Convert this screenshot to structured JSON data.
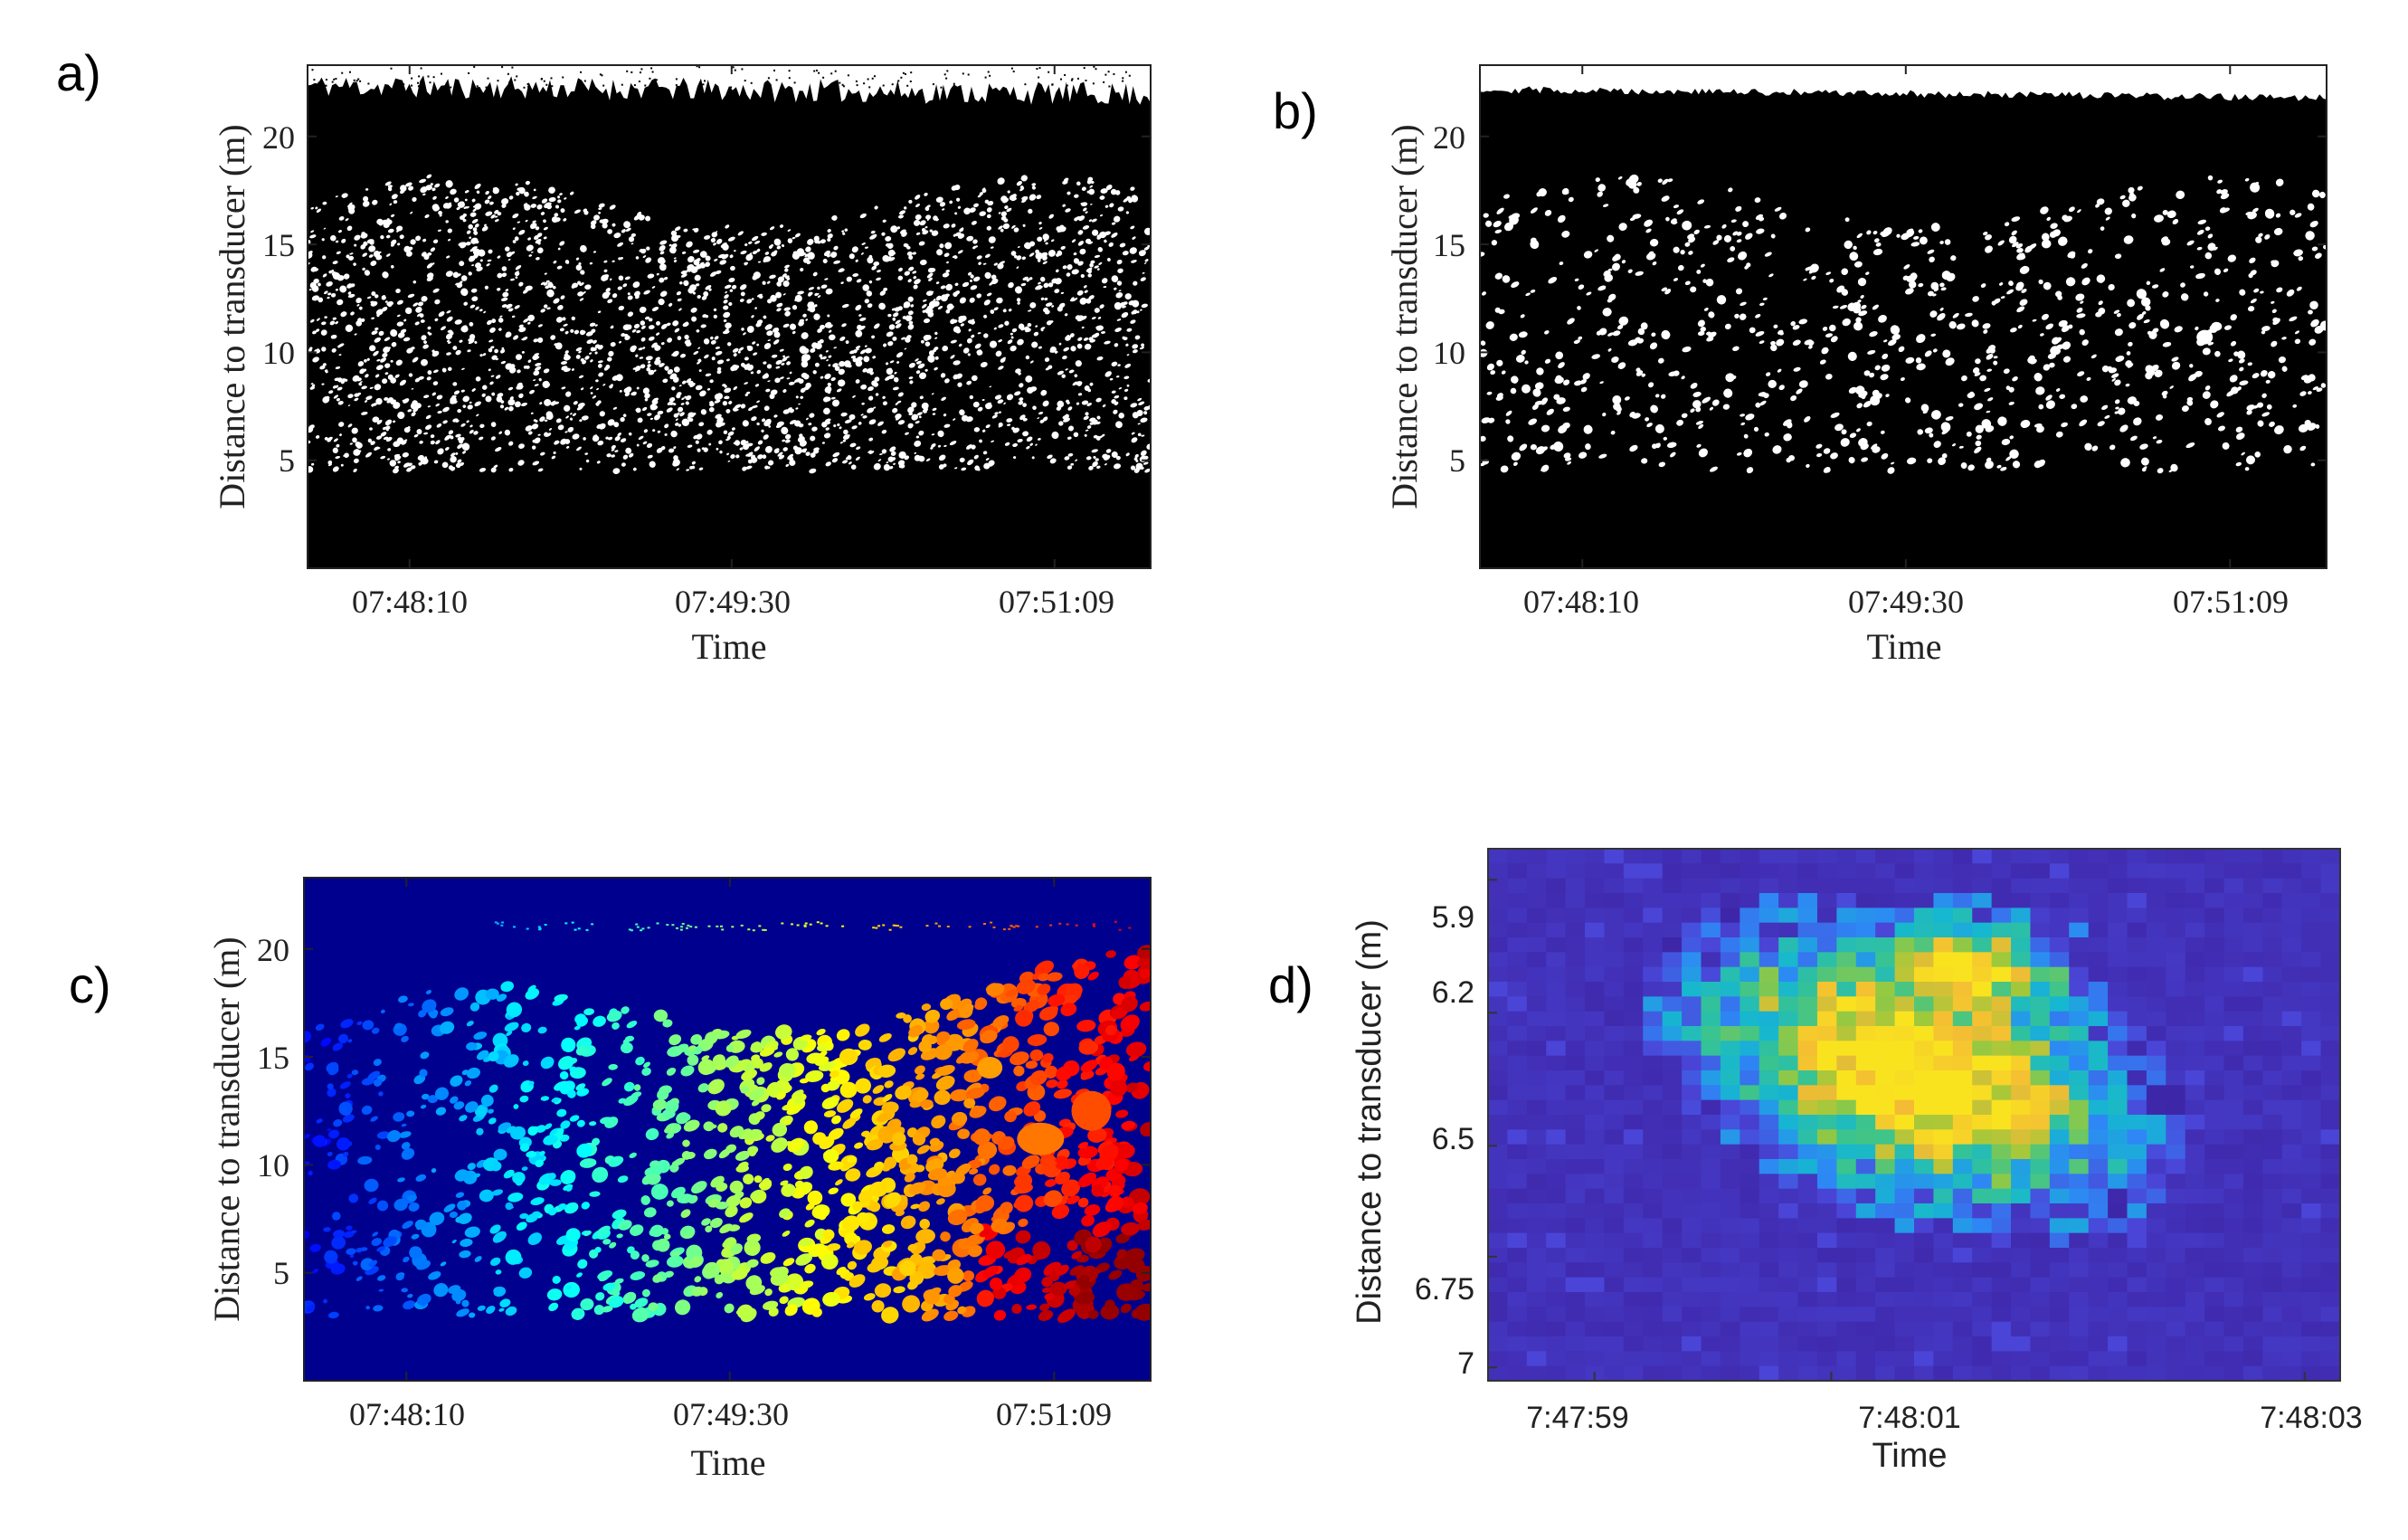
{
  "panels": {
    "a": {
      "letter": "a)"
    },
    "b": {
      "letter": "b)"
    },
    "c": {
      "letter": "c)"
    },
    "d": {
      "letter": "d)"
    }
  },
  "colors": {
    "mask_background": "#000000",
    "blob": "#ffffff",
    "labelled_background": "#00008f",
    "jet_colormap": [
      "#00008f",
      "#0000ff",
      "#0080ff",
      "#00ffff",
      "#80ff80",
      "#ffff00",
      "#ff8000",
      "#ff0000",
      "#800000"
    ],
    "parula_colormap": [
      "#3e26a8",
      "#4a46d8",
      "#2e87f5",
      "#16b7d0",
      "#3bc48d",
      "#9fc93a",
      "#f3bb35",
      "#f9e31f"
    ]
  },
  "chart_data": [
    {
      "panel": "a",
      "type": "heatmap",
      "description": "Binary (thresholded) echogram",
      "xlabel": "Time",
      "ylabel": "Distance to transducer (m)",
      "x_ticks": [
        "07:48:10",
        "07:49:30",
        "07:51:09"
      ],
      "y_ticks": [
        5,
        10,
        15,
        20
      ],
      "ylim": [
        0,
        23.3
      ],
      "colors": [
        "black",
        "white"
      ],
      "fish_band_m": [
        4.5,
        18.5
      ],
      "surface_m": 22
    },
    {
      "panel": "b",
      "type": "heatmap",
      "description": "Binary echogram after morphological filtering",
      "xlabel": "Time",
      "ylabel": "Distance to transducer (m)",
      "x_ticks": [
        "07:48:10",
        "07:49:30",
        "07:51:09"
      ],
      "y_ticks": [
        5,
        10,
        15,
        20
      ],
      "ylim": [
        0,
        23.3
      ],
      "colors": [
        "black",
        "white"
      ],
      "fish_band_m": [
        4.5,
        18.5
      ],
      "surface_m": 22
    },
    {
      "panel": "c",
      "type": "heatmap",
      "description": "Labelled connected components (jet colormap by time)",
      "xlabel": "Time",
      "ylabel": "Distance to transducer (m)",
      "x_ticks": [
        "07:48:10",
        "07:49:30",
        "07:51:09"
      ],
      "y_ticks": [
        5,
        10,
        15,
        20
      ],
      "ylim": [
        0,
        23.3
      ],
      "colormap": "jet",
      "fish_band_m": [
        3,
        19
      ]
    },
    {
      "panel": "d",
      "type": "heatmap",
      "description": "Zoom on a single target (parula colormap)",
      "xlabel": "Time",
      "ylabel": "Distance to transducer (m)",
      "x_ticks": [
        "7:47:59",
        "7:48:01",
        "7:48:03"
      ],
      "y_ticks": [
        "5.9",
        "6.2",
        "6.5",
        "6.75",
        "7"
      ],
      "y_tick_values": [
        5.9,
        6.2,
        6.5,
        6.75,
        7.0
      ],
      "ylim": [
        5.83,
        7.03
      ],
      "xlim_s": [
        -1.45,
        2.15
      ],
      "colormap": "parula"
    }
  ]
}
